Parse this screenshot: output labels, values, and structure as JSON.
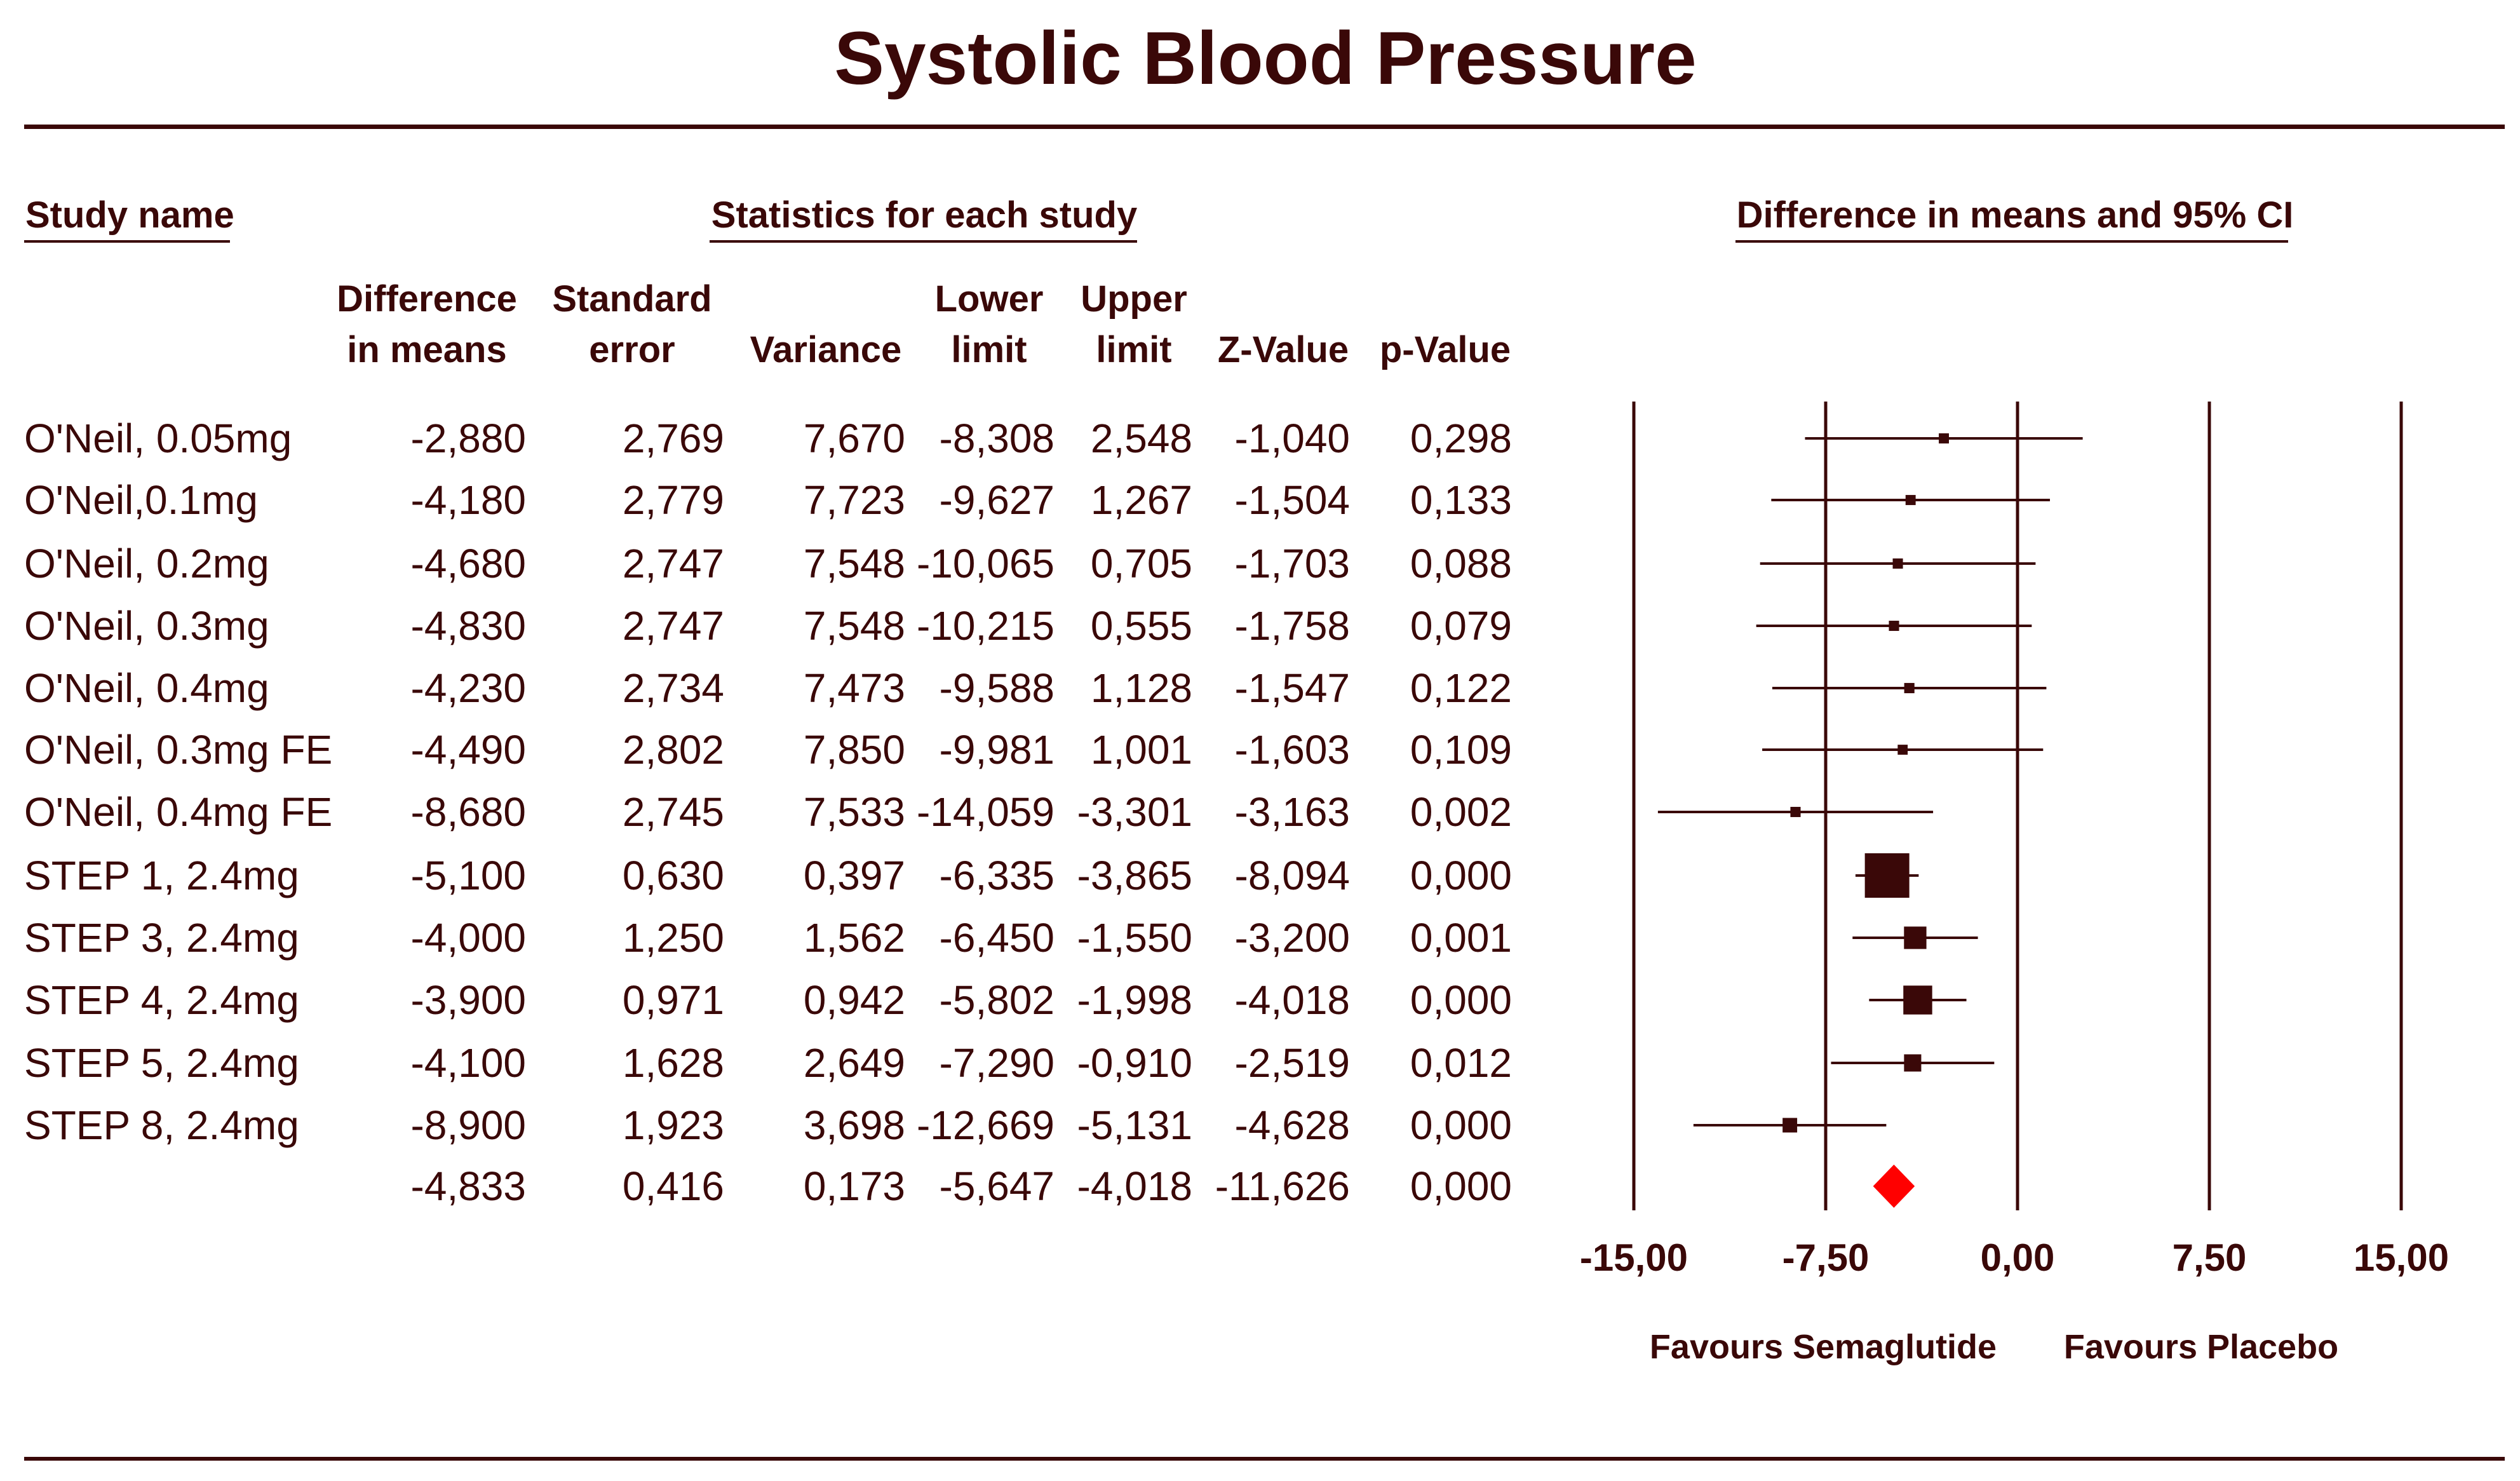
{
  "chart_data": {
    "type": "forest",
    "title": "Systolic Blood Pressure",
    "headers": {
      "study_name": "Study name",
      "statistics": "Statistics for each study",
      "ci": "Difference in means and 95% CI"
    },
    "columns": [
      {
        "line1": "Difference",
        "line2": "in means"
      },
      {
        "line1": "Standard",
        "line2": "error"
      },
      {
        "line1": "",
        "line2": "Variance"
      },
      {
        "line1": "Lower",
        "line2": "limit"
      },
      {
        "line1": "Upper",
        "line2": "limit"
      },
      {
        "line1": "",
        "line2": "Z-Value"
      },
      {
        "line1": "",
        "line2": "p-Value"
      }
    ],
    "studies": [
      {
        "name": "O'Neil, 0.05mg",
        "cells": [
          "-2,880",
          "2,769",
          "7,670",
          "-8,308",
          "2,548",
          "-1,040",
          "0,298"
        ],
        "mean": -2.88,
        "lower": -8.308,
        "upper": 2.548,
        "variance": 7.67
      },
      {
        "name": "O'Neil,0.1mg",
        "cells": [
          "-4,180",
          "2,779",
          "7,723",
          "-9,627",
          "1,267",
          "-1,504",
          "0,133"
        ],
        "mean": -4.18,
        "lower": -9.627,
        "upper": 1.267,
        "variance": 7.723
      },
      {
        "name": "O'Neil, 0.2mg",
        "cells": [
          "-4,680",
          "2,747",
          "7,548",
          "-10,065",
          "0,705",
          "-1,703",
          "0,088"
        ],
        "mean": -4.68,
        "lower": -10.065,
        "upper": 0.705,
        "variance": 7.548
      },
      {
        "name": "O'Neil, 0.3mg",
        "cells": [
          "-4,830",
          "2,747",
          "7,548",
          "-10,215",
          "0,555",
          "-1,758",
          "0,079"
        ],
        "mean": -4.83,
        "lower": -10.215,
        "upper": 0.555,
        "variance": 7.548
      },
      {
        "name": "O'Neil, 0.4mg",
        "cells": [
          "-4,230",
          "2,734",
          "7,473",
          "-9,588",
          "1,128",
          "-1,547",
          "0,122"
        ],
        "mean": -4.23,
        "lower": -9.588,
        "upper": 1.128,
        "variance": 7.473
      },
      {
        "name": "O'Neil, 0.3mg FE",
        "cells": [
          "-4,490",
          "2,802",
          "7,850",
          "-9,981",
          "1,001",
          "-1,603",
          "0,109"
        ],
        "mean": -4.49,
        "lower": -9.981,
        "upper": 1.001,
        "variance": 7.85
      },
      {
        "name": "O'Neil, 0.4mg FE",
        "cells": [
          "-8,680",
          "2,745",
          "7,533",
          "-14,059",
          "-3,301",
          "-3,163",
          "0,002"
        ],
        "mean": -8.68,
        "lower": -14.059,
        "upper": -3.301,
        "variance": 7.533
      },
      {
        "name": "STEP 1, 2.4mg",
        "cells": [
          "-5,100",
          "0,630",
          "0,397",
          "-6,335",
          "-3,865",
          "-8,094",
          "0,000"
        ],
        "mean": -5.1,
        "lower": -6.335,
        "upper": -3.865,
        "variance": 0.397
      },
      {
        "name": "STEP 3, 2.4mg",
        "cells": [
          "-4,000",
          "1,250",
          "1,562",
          "-6,450",
          "-1,550",
          "-3,200",
          "0,001"
        ],
        "mean": -4.0,
        "lower": -6.45,
        "upper": -1.55,
        "variance": 1.562
      },
      {
        "name": "STEP 4, 2.4mg",
        "cells": [
          "-3,900",
          "0,971",
          "0,942",
          "-5,802",
          "-1,998",
          "-4,018",
          "0,000"
        ],
        "mean": -3.9,
        "lower": -5.802,
        "upper": -1.998,
        "variance": 0.942
      },
      {
        "name": "STEP 5, 2.4mg",
        "cells": [
          "-4,100",
          "1,628",
          "2,649",
          "-7,290",
          "-0,910",
          "-2,519",
          "0,012"
        ],
        "mean": -4.1,
        "lower": -7.29,
        "upper": -0.91,
        "variance": 2.649
      },
      {
        "name": "STEP 8, 2.4mg",
        "cells": [
          "-8,900",
          "1,923",
          "3,698",
          "-12,669",
          "-5,131",
          "-4,628",
          "0,000"
        ],
        "mean": -8.9,
        "lower": -12.669,
        "upper": -5.131,
        "variance": 3.698
      }
    ],
    "summary": {
      "cells": [
        "-4,833",
        "0,416",
        "0,173",
        "-5,647",
        "-4,018",
        "-11,626",
        "0,000"
      ],
      "mean": -4.833,
      "lower": -5.647,
      "upper": -4.018
    },
    "x_axis": {
      "range": [
        -15,
        15
      ],
      "ticks": [
        -15,
        -7.5,
        0,
        7.5,
        15
      ],
      "tick_labels": [
        "-15,00",
        "-7,50",
        "0,00",
        "7,50",
        "15,00"
      ]
    },
    "favours_left": "Favours Semaglutide",
    "favours_right": "Favours Placebo",
    "colors": {
      "ink": "#3a0808",
      "summary": "#ff0000"
    }
  }
}
